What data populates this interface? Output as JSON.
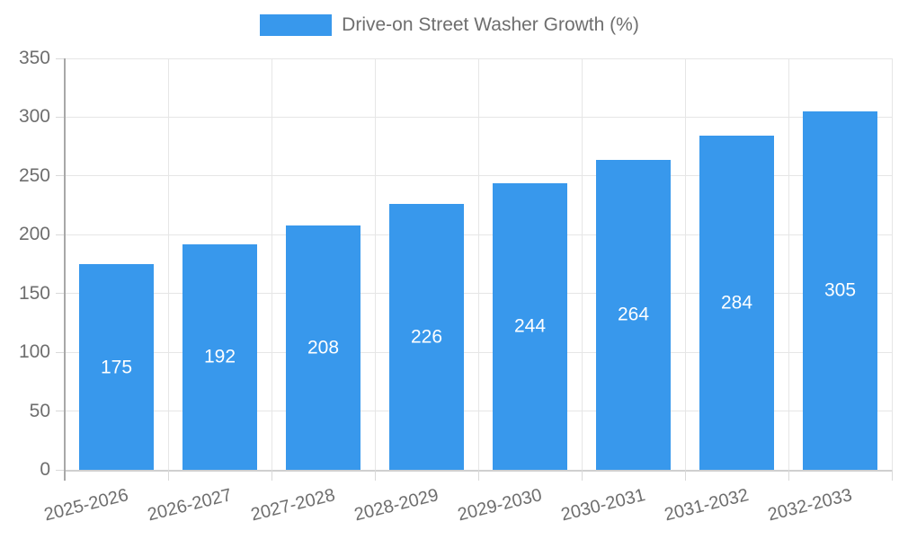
{
  "chart_data": {
    "type": "bar",
    "title": "Drive-on Street Washer Growth (%)",
    "categories": [
      "2025-2026",
      "2026-2027",
      "2027-2028",
      "2028-2029",
      "2029-2030",
      "2030-2031",
      "2031-2032",
      "2032-2033"
    ],
    "values": [
      175,
      192,
      208,
      226,
      244,
      264,
      284,
      305
    ],
    "series": [
      {
        "name": "Drive-on Street Washer Growth (%)",
        "values": [
          175,
          192,
          208,
          226,
          244,
          264,
          284,
          305
        ]
      }
    ],
    "xlabel": "",
    "ylabel": "",
    "ylim": [
      0,
      350
    ],
    "ytick_step": 50,
    "ytick_labels": [
      "0",
      "50",
      "100",
      "150",
      "200",
      "250",
      "300",
      "350"
    ],
    "grid": true,
    "legend_position": "top",
    "bar_label_position": "center-inside"
  },
  "legend": {
    "label": "Drive-on Street Washer Growth (%)"
  },
  "colors": {
    "bar": "#3898ec",
    "bar_value_text": "#ffffff",
    "axis_text": "#6e6e6e",
    "legend_text": "#6e6e6e",
    "gridline": "#e6e6e6",
    "tick": "#d9d9d9",
    "y_axis_line": "#a8a8a8",
    "x_axis_line": "#cfcfcf",
    "background": "#ffffff"
  }
}
